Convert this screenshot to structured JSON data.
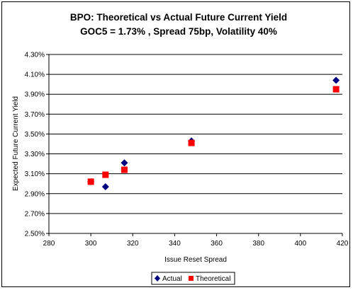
{
  "chart_data": {
    "type": "scatter",
    "title": "BPO: Theoretical vs Actual Future Current Yield",
    "subtitle": "GOC5 = 1.73% , Spread 75bp, Volatility 40%",
    "xlabel": "Issue Reset Spread",
    "ylabel": "Expected Future Current Yield",
    "xlim": [
      280,
      420
    ],
    "ylim": [
      2.5,
      4.3
    ],
    "x_ticks": [
      "280",
      "300",
      "320",
      "340",
      "360",
      "380",
      "400",
      "420"
    ],
    "y_ticks": [
      "2.50%",
      "2.70%",
      "2.90%",
      "3.10%",
      "3.30%",
      "3.50%",
      "3.70%",
      "3.90%",
      "4.10%",
      "4.30%"
    ],
    "y_tick_values": [
      2.5,
      2.7,
      2.9,
      3.1,
      3.3,
      3.5,
      3.7,
      3.9,
      4.1,
      4.3
    ],
    "x_tick_values": [
      280,
      300,
      320,
      340,
      360,
      380,
      400,
      420
    ],
    "grid": "horizontal",
    "legend_position": "bottom",
    "series": [
      {
        "name": "Actual",
        "color": "#000080",
        "marker": "diamond",
        "points": [
          [
            300,
            3.02
          ],
          [
            307,
            2.97
          ],
          [
            316,
            3.21
          ],
          [
            348,
            3.43
          ],
          [
            417,
            4.04
          ]
        ]
      },
      {
        "name": "Theoretical",
        "color": "#ff0000",
        "marker": "square",
        "points": [
          [
            300,
            3.02
          ],
          [
            307,
            3.09
          ],
          [
            316,
            3.14
          ],
          [
            348,
            3.41
          ],
          [
            417,
            3.95
          ]
        ]
      }
    ]
  }
}
